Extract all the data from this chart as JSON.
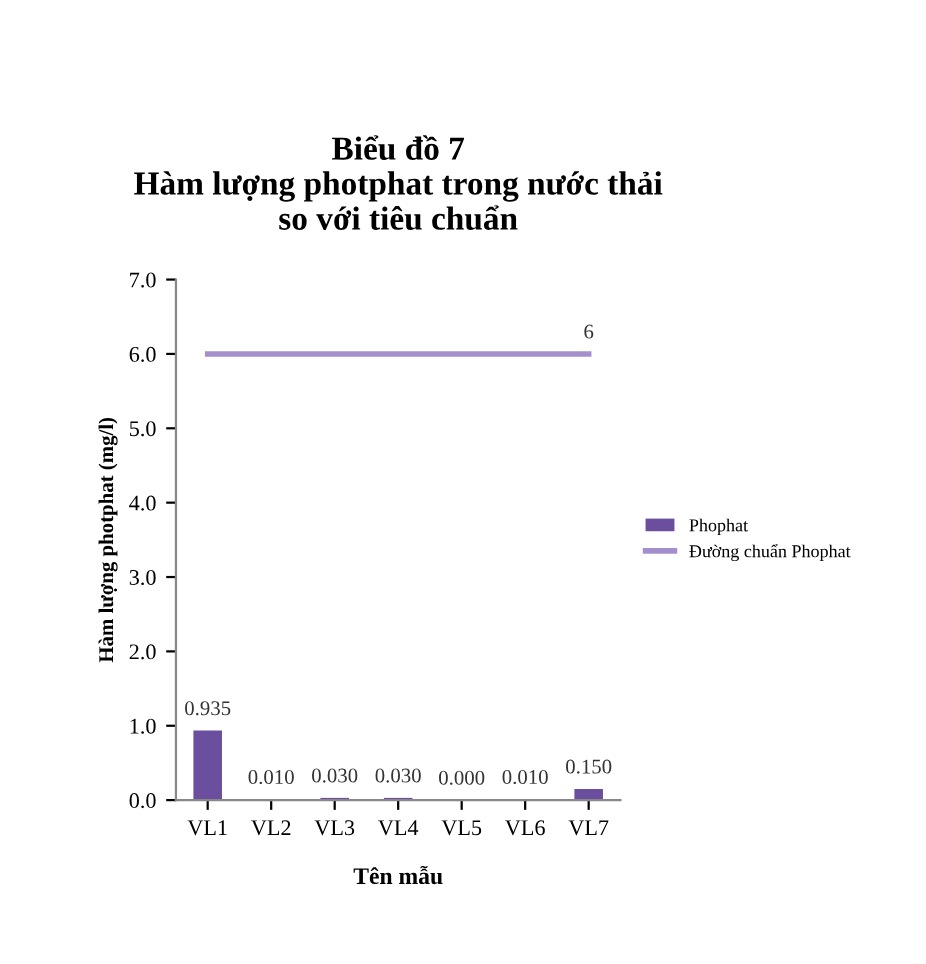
{
  "chart_data": {
    "type": "bar",
    "title": "Biểu đồ 7\nHàm lượng photphat trong nước thải\nso với tiêu chuẩn",
    "xlabel": "Tên mẫu",
    "ylabel": "Hàm lượng photphat (mg/l)",
    "categories": [
      "VL1",
      "VL2",
      "VL3",
      "VL4",
      "VL5",
      "VL6",
      "VL7"
    ],
    "series": [
      {
        "name": "Phophat",
        "color": "#6b4f9e",
        "values": [
          0.935,
          0.01,
          0.03,
          0.03,
          0.0,
          0.01,
          0.15
        ],
        "value_labels": [
          "0.935",
          "0.010",
          "0.030",
          "0.030",
          "0.000",
          "0.010",
          "0.150"
        ]
      },
      {
        "name": "Đường chuẩn Phophat",
        "type": "line",
        "color": "#a48fcc",
        "values": [
          6,
          6,
          6,
          6,
          6,
          6,
          6
        ],
        "value_labels": [
          null,
          null,
          null,
          null,
          null,
          null,
          "6"
        ]
      }
    ],
    "ylim": [
      0,
      7
    ],
    "yticks": [
      {
        "value": 0,
        "label": "0.0"
      },
      {
        "value": 1,
        "label": "1.0"
      },
      {
        "value": 2,
        "label": "2.0"
      },
      {
        "value": 3,
        "label": "3.0"
      },
      {
        "value": 4,
        "label": "4.0"
      },
      {
        "value": 5,
        "label": "5.0"
      },
      {
        "value": 6,
        "label": "6.0"
      },
      {
        "value": 7,
        "label": "7.0"
      }
    ],
    "grid": false,
    "legend": "right"
  }
}
